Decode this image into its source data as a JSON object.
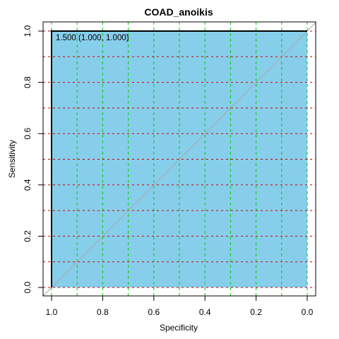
{
  "chart_data": {
    "type": "line",
    "title": "COAD_anoikis",
    "xlabel": "Specificity",
    "ylabel": "Sensitivity",
    "xlim": [
      1.0,
      0.0
    ],
    "ylim": [
      0.0,
      1.0
    ],
    "x_reversed": true,
    "x_ticks": [
      "1.0",
      "0.8",
      "0.6",
      "0.4",
      "0.2",
      "0.0"
    ],
    "x_tick_values": [
      1.0,
      0.8,
      0.6,
      0.4,
      0.2,
      0.0
    ],
    "y_ticks": [
      "0.0",
      "0.2",
      "0.4",
      "0.6",
      "0.8",
      "1.0"
    ],
    "y_tick_values": [
      0.0,
      0.2,
      0.4,
      0.6,
      0.8,
      1.0
    ],
    "grid": true,
    "grid_color_x": "#00cc00",
    "grid_color_y": "#cc0000",
    "fill_color": "#87ceeb",
    "curve_color": "#000000",
    "diagonal_color": "#aaaaaa",
    "series": [
      {
        "x": [
          1.0,
          1.0,
          0.0
        ],
        "y": [
          0.0,
          1.0,
          1.0
        ]
      }
    ],
    "threshold_point": {
      "specificity": 1.0,
      "sensitivity": 1.0
    },
    "annotation": "1.500 (1.000, 1.000)"
  }
}
